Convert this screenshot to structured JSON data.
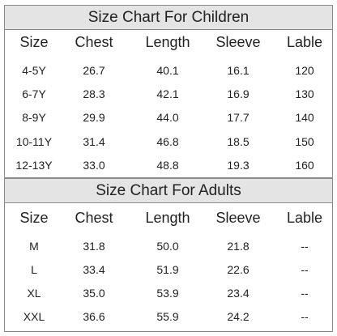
{
  "children": {
    "title": "Size Chart For Children",
    "headers": [
      "Size",
      "Chest",
      "Length",
      "Sleeve",
      "Lable"
    ],
    "rows": [
      [
        "4-5Y",
        "26.7",
        "40.1",
        "16.1",
        "120"
      ],
      [
        "6-7Y",
        "28.3",
        "42.1",
        "16.9",
        "130"
      ],
      [
        "8-9Y",
        "29.9",
        "44.0",
        "17.7",
        "140"
      ],
      [
        "10-11Y",
        "31.4",
        "46.8",
        "18.5",
        "150"
      ],
      [
        "12-13Y",
        "33.0",
        "48.8",
        "19.3",
        "160"
      ]
    ]
  },
  "adults": {
    "title": "Size Chart For Adults",
    "headers": [
      "Size",
      "Chest",
      "Length",
      "Sleeve",
      "Lable"
    ],
    "rows": [
      [
        "M",
        "31.8",
        "50.0",
        "21.8",
        "--"
      ],
      [
        "L",
        "33.4",
        "51.9",
        "22.6",
        "--"
      ],
      [
        "XL",
        "35.0",
        "53.9",
        "23.4",
        "--"
      ],
      [
        "XXL",
        "36.6",
        "55.9",
        "24.2",
        "--"
      ]
    ]
  }
}
